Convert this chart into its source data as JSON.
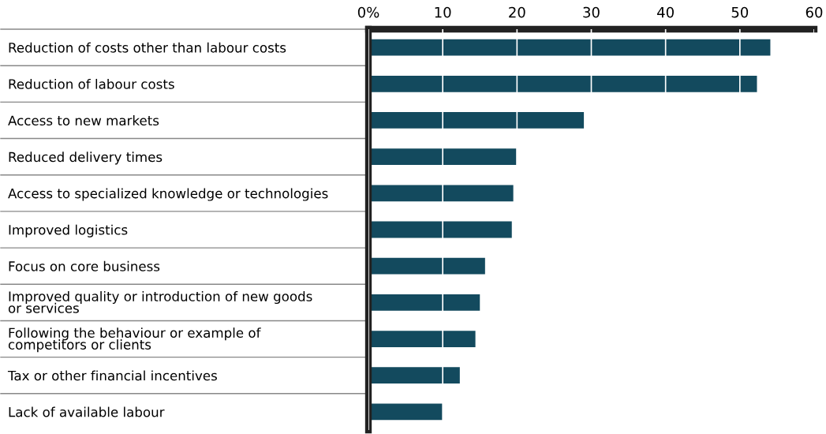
{
  "chart_data": {
    "type": "bar",
    "orientation": "horizontal",
    "categories": [
      "Reduction of costs other than labour costs",
      "Reduction of labour costs",
      "Access to new markets",
      "Reduced delivery times",
      "Access to specialized knowledge or technologies",
      "Improved logistics",
      "Focus on core business",
      "Improved quality or introduction of new goods\nor services",
      "Following the behaviour or example of\ncompetitors or clients",
      "Tax or other financial incentives",
      "Lack of available labour"
    ],
    "values": [
      54.1,
      52.3,
      29.0,
      19.9,
      19.5,
      19.3,
      15.7,
      15.0,
      14.4,
      12.3,
      10.0
    ],
    "color": "#134a5e",
    "xlim": [
      0,
      60
    ],
    "xticks": [
      {
        "value": 0,
        "label": "0%"
      },
      10,
      20,
      30,
      40,
      50,
      60
    ],
    "grid": "x"
  }
}
